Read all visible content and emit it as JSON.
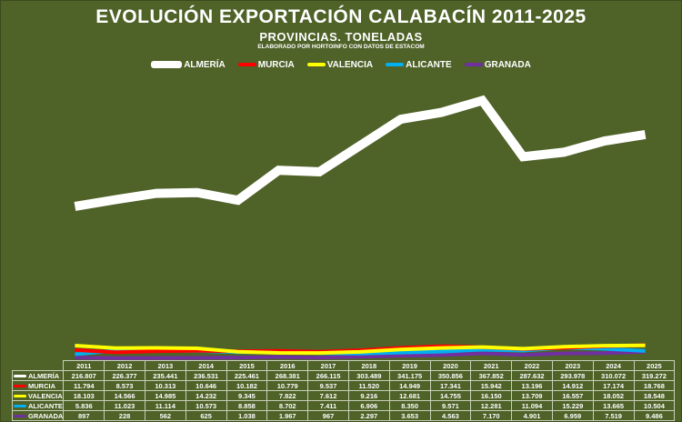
{
  "chart_data": {
    "type": "line",
    "title": "EVOLUCIÓN EXPORTACIÓN CALABACÍN 2011-2025",
    "subtitle": "PROVINCIAS. TONELADAS",
    "note": "ELABORADO POR HORTOINFO CON DATOS DE ESTACOM",
    "legend_position": "top",
    "grid": false,
    "x": [
      "2011",
      "2012",
      "2013",
      "2014",
      "2015",
      "2016",
      "2017",
      "2018",
      "2019",
      "2020",
      "2021",
      "2022",
      "2023",
      "2024",
      "2025"
    ],
    "series": [
      {
        "name": "ALMERÍA",
        "color": "#ffffff",
        "values": [
          216807,
          226377,
          235441,
          236531,
          225461,
          268381,
          266115,
          303489,
          341175,
          350856,
          367852,
          287632,
          293978,
          310072,
          319272
        ],
        "labels": [
          "216.807",
          "226.377",
          "235.441",
          "236.531",
          "225.461",
          "268.381",
          "266.115",
          "303.489",
          "341.175",
          "350.856",
          "367.852",
          "287.632",
          "293.978",
          "310.072",
          "319.272"
        ]
      },
      {
        "name": "MURCIA",
        "color": "#ff0000",
        "values": [
          11794,
          8573,
          10313,
          10646,
          10182,
          10779,
          9537,
          11520,
          14949,
          17341,
          15942,
          13196,
          14912,
          17174,
          18768
        ],
        "labels": [
          "11.794",
          "8.573",
          "10.313",
          "10.646",
          "10.182",
          "10.779",
          "9.537",
          "11.520",
          "14.949",
          "17.341",
          "15.942",
          "13.196",
          "14.912",
          "17.174",
          "18.768"
        ]
      },
      {
        "name": "VALENCIA",
        "color": "#ffff00",
        "values": [
          18103,
          14566,
          14985,
          14232,
          9345,
          7822,
          7612,
          9216,
          12681,
          14755,
          16150,
          13709,
          16557,
          18052,
          18548
        ],
        "labels": [
          "18.103",
          "14.566",
          "14.985",
          "14.232",
          "9.345",
          "7.822",
          "7.612",
          "9.216",
          "12.681",
          "14.755",
          "16.150",
          "13.709",
          "16.557",
          "18.052",
          "18.548"
        ]
      },
      {
        "name": "ALICANTE",
        "color": "#00b0f0",
        "values": [
          5836,
          11023,
          11114,
          10573,
          8858,
          8702,
          7411,
          6906,
          8350,
          9571,
          12281,
          11094,
          15229,
          13665,
          10504
        ],
        "labels": [
          "5.836",
          "11.023",
          "11.114",
          "10.573",
          "8.858",
          "8.702",
          "7.411",
          "6.906",
          "8.350",
          "9.571",
          "12.281",
          "11.094",
          "15.229",
          "13.665",
          "10.504"
        ]
      },
      {
        "name": "GRANADA",
        "color": "#7030a0",
        "values": [
          897,
          228,
          562,
          625,
          1038,
          1967,
          967,
          2297,
          3653,
          4563,
          7170,
          4901,
          6959,
          7519,
          9486
        ],
        "labels": [
          "897",
          "228",
          "562",
          "625",
          "1.038",
          "1.967",
          "967",
          "2.297",
          "3.653",
          "4.563",
          "7.170",
          "4.901",
          "6.959",
          "7.519",
          "9.486"
        ]
      }
    ]
  }
}
